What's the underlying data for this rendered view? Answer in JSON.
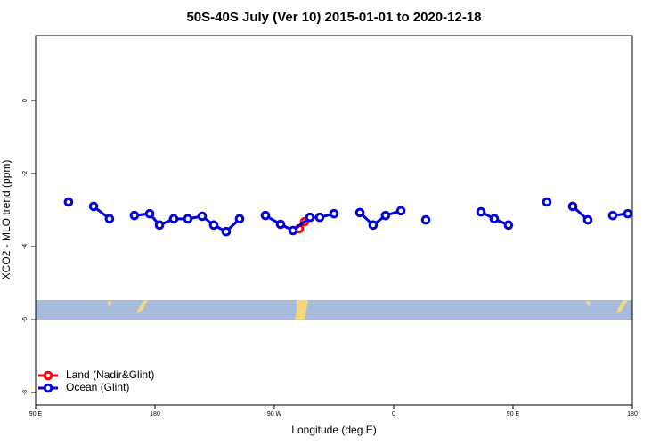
{
  "chart_data": {
    "type": "line",
    "title": "50S-40S July (Ver 10)   2015-01-01 to 2020-12-18",
    "xlabel": "Longitude (deg E)",
    "ylabel": "XCO2 - MLO trend (ppm)",
    "xlim": [
      90,
      540
    ],
    "xticks": [
      {
        "value": 90,
        "label": "90 E"
      },
      {
        "value": 180,
        "label": "180"
      },
      {
        "value": 270,
        "label": "90 W"
      },
      {
        "value": 360,
        "label": "0"
      },
      {
        "value": 450,
        "label": "90 E"
      },
      {
        "value": 540,
        "label": "180"
      }
    ],
    "ylim": [
      -8.34,
      1.78
    ],
    "yticks": [
      0,
      -2,
      -4,
      -6,
      -8
    ],
    "legend": "bottom-left",
    "series": [
      {
        "name": "Land (Nadir&Glint)",
        "color": "#ff0000",
        "x": [
          288.8,
          292.8
        ],
        "values": [
          -3.51,
          -3.32
        ]
      },
      {
        "name": "Ocean (Glint)",
        "color": "#0000dd",
        "x": [
          114.8,
          null,
          133.7,
          145.7,
          null,
          164.5,
          176,
          183.4,
          194.1,
          204.8,
          215.6,
          224.3,
          233.7,
          243.8,
          null,
          263.3,
          274.7,
          284.1,
          296.9,
          304.2,
          315,
          null,
          334.5,
          344.5,
          353.9,
          365.4,
          null,
          384.2,
          null,
          425.8,
          435.9,
          446.6,
          null,
          475.5,
          null,
          495,
          506.4,
          null,
          525.2,
          536.6
        ],
        "values": [
          -2.78,
          null,
          -2.9,
          -3.24,
          null,
          -3.15,
          -3.1,
          -3.41,
          -3.24,
          -3.24,
          -3.17,
          -3.41,
          -3.59,
          -3.24,
          null,
          -3.15,
          -3.39,
          -3.56,
          -3.2,
          -3.2,
          -3.1,
          null,
          -3.07,
          -3.41,
          -3.15,
          -3.02,
          null,
          -3.27,
          null,
          -3.05,
          -3.24,
          -3.41,
          null,
          -2.78,
          null,
          -2.9,
          -3.27,
          null,
          -3.15,
          -3.1
        ]
      }
    ]
  }
}
